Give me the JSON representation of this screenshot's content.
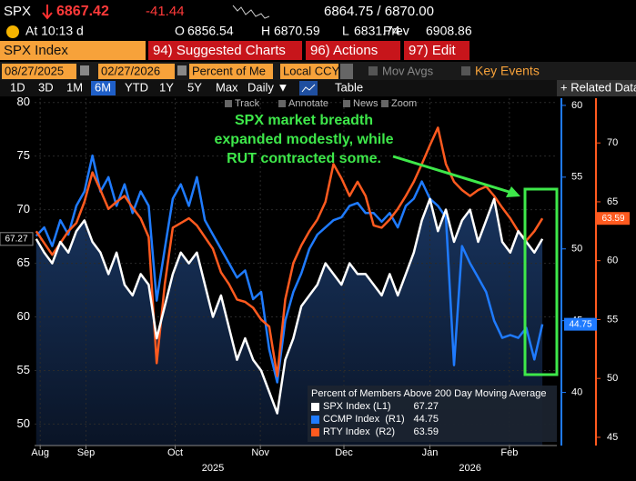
{
  "ui": {
    "ticker": "SPX",
    "last": "6867.42",
    "change": "-41.44",
    "bid_ask": "6864.75 / 6870.00",
    "time": "At 10:13 d",
    "open_label": "O",
    "open": "6856.54",
    "high_label": "H",
    "high": "6870.59",
    "low_label": "L",
    "low": "6831.74",
    "prev_label": "Prev",
    "prev": "6908.86",
    "security": "SPX Index",
    "menu": [
      "94) Suggested Charts",
      "96) Actions",
      "97) Edit"
    ],
    "start_date": "08/27/2025",
    "end_date": "02/27/2026",
    "field": "Percent of Me",
    "currency": "Local CCY",
    "mov_avgs": "Mov Avgs",
    "key_events": "Key Events",
    "periods": [
      "1D",
      "3D",
      "1M",
      "6M",
      "YTD",
      "1Y",
      "5Y",
      "Max"
    ],
    "frequency": "Daily ▼",
    "table": "Table",
    "related": "+ Related Data",
    "tools": [
      "Track",
      "Annotate",
      "News",
      "Zoom"
    ]
  },
  "chart_data": {
    "type": "line",
    "annotation": [
      "SPX market breadth",
      "expanded modestly, while",
      "RUT contracted some."
    ],
    "legend_title": "Percent of Members Above 200 Day Moving Average",
    "xlim": [
      -0.2,
      64.8
    ],
    "xticks": [
      {
        "value": 0.5,
        "label": "Aug"
      },
      {
        "value": 6.2,
        "label": "Sep"
      },
      {
        "value": 17.3,
        "label": "Oct"
      },
      {
        "value": 27.9,
        "label": "Nov"
      },
      {
        "value": 38.3,
        "label": "Dec"
      },
      {
        "value": 49,
        "label": "Jan"
      },
      {
        "value": 58.9,
        "label": "Feb"
      }
    ],
    "xyears": [
      {
        "value": 22,
        "label": "2025"
      },
      {
        "value": 54,
        "label": "2026"
      }
    ],
    "ylim": [
      48,
      80.4
    ],
    "yticks": [
      50,
      55,
      60,
      65,
      70,
      75,
      80
    ],
    "y2lim": [
      36.3,
      60.5
    ],
    "y2ticks": [
      40,
      45,
      50,
      55,
      60
    ],
    "y3lim": [
      44.3,
      73.8
    ],
    "y3ticks": [
      45,
      50,
      55,
      60,
      65,
      70
    ],
    "grid": true,
    "series": [
      {
        "name": "SPX Index (L1)",
        "color": "#ffffff",
        "axis": "y",
        "values": [
          67.27,
          66,
          65,
          67,
          66,
          68,
          69,
          67,
          66,
          64,
          66,
          63,
          62,
          64,
          63,
          58,
          61,
          64,
          66,
          65,
          66,
          63,
          60,
          62,
          59,
          56,
          58,
          56,
          55,
          53,
          51,
          56,
          58,
          61,
          62,
          63,
          65,
          64,
          63,
          65,
          64,
          64,
          63,
          62,
          64,
          62,
          64,
          66,
          69,
          71,
          68,
          70,
          67,
          69,
          70,
          67,
          69,
          71,
          67,
          66,
          68,
          67,
          66,
          67.27
        ]
      },
      {
        "name": "CCMP Index  (R1)",
        "color": "#1f7bff",
        "axis": "y2",
        "values": [
          50.9,
          51.5,
          50.2,
          52,
          51,
          53,
          54,
          56.5,
          54,
          55,
          53,
          54.5,
          52.5,
          54,
          53,
          46.4,
          50,
          53.5,
          54.5,
          53,
          55,
          52,
          51,
          50,
          49,
          48,
          48.5,
          46.5,
          47,
          43,
          40.7,
          45,
          47,
          48.3,
          50,
          51,
          51.5,
          52,
          52.2,
          53,
          53.2,
          52.5,
          52.5,
          51.9,
          52.5,
          51.5,
          53,
          53.5,
          54.7,
          53.5,
          53,
          52.2,
          41.9,
          50.2,
          49,
          48,
          47,
          45,
          43.8,
          44,
          43.8,
          44.5,
          42.3,
          44.75
        ]
      },
      {
        "name": "RTY Index  (R2)",
        "color": "#ff5a1f",
        "axis": "y3",
        "values": [
          62.5,
          61.5,
          60.5,
          61.5,
          62.5,
          63.2,
          65,
          67.5,
          66,
          64.4,
          65,
          65.5,
          64.5,
          63.6,
          62,
          51.3,
          58,
          62.8,
          63.2,
          63.6,
          63,
          62,
          61,
          59,
          58,
          56.7,
          56.5,
          56,
          55,
          54.4,
          50.2,
          56.7,
          59.8,
          61.3,
          62.5,
          63.5,
          65,
          68.2,
          67,
          65.5,
          66.7,
          65.5,
          63,
          62.8,
          63.5,
          64.4,
          65.5,
          66.7,
          68.2,
          69.8,
          71.3,
          68.2,
          66.7,
          66,
          65.5,
          66,
          66.3,
          65.5,
          64.5,
          63.6,
          62.5,
          61.7,
          62.5,
          63.59
        ]
      }
    ]
  }
}
